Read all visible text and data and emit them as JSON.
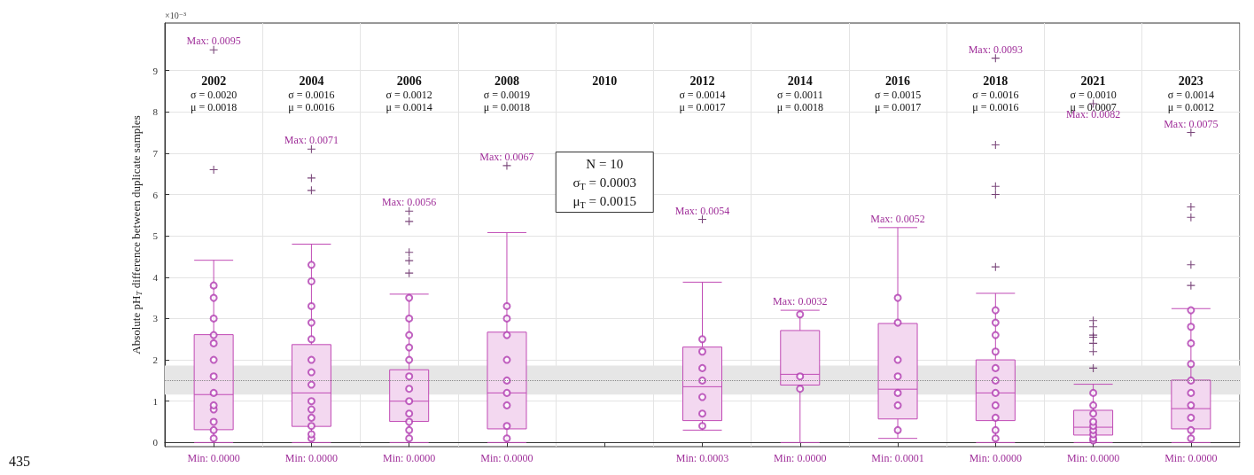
{
  "chart_data": {
    "type": "box",
    "ylabel": "Absolute pH$_{T}$ difference between duplicate samples",
    "categories": [
      "2002",
      "2004",
      "2006",
      "2008",
      "2010",
      "2012",
      "2014",
      "2016",
      "2018",
      "2021",
      "2023"
    ],
    "ylim": [
      -0.1,
      10.15
    ],
    "yticks": [
      0,
      1,
      2,
      3,
      4,
      5,
      6,
      7,
      8,
      9
    ],
    "grid": true,
    "series": [
      {
        "type": "box",
        "color": "#c04ab5",
        "boxes": [
          {
            "low": 0,
            "q1": 0.31,
            "median": 1.16,
            "q3": 2.61,
            "high": 4.41,
            "outliers": [
              6.6,
              9.5
            ]
          },
          {
            "low": 0,
            "q1": 0.39,
            "median": 1.2,
            "q3": 2.37,
            "high": 4.8,
            "outliers": [
              6.1,
              6.4,
              7.1
            ]
          },
          {
            "low": 0,
            "q1": 0.51,
            "median": 1.0,
            "q3": 1.76,
            "high": 3.59,
            "outliers": [
              4.1,
              4.4,
              4.6,
              5.35,
              5.6
            ]
          },
          {
            "low": 0,
            "q1": 0.33,
            "median": 1.2,
            "q3": 2.67,
            "high": 5.08,
            "outliers": [
              6.7
            ]
          },
          null,
          {
            "low": 0.3,
            "q1": 0.53,
            "median": 1.35,
            "q3": 2.31,
            "high": 3.88,
            "outliers": [
              5.4
            ]
          },
          {
            "low": 0,
            "q1": 1.39,
            "median": 1.65,
            "q3": 2.71,
            "high": 3.2
          },
          {
            "low": 0.1,
            "q1": 0.57,
            "median": 1.29,
            "q3": 2.88,
            "high": 5.2
          },
          {
            "low": 0,
            "q1": 0.53,
            "median": 1.2,
            "q3": 2.0,
            "high": 3.61,
            "outliers": [
              4.25,
              6.0,
              6.2,
              7.2,
              9.3
            ]
          },
          {
            "low": 0,
            "q1": 0.18,
            "median": 0.37,
            "q3": 0.78,
            "high": 1.41,
            "outliers": [
              1.8,
              2.2,
              2.4,
              2.55,
              2.6,
              2.8,
              2.95,
              8.2
            ]
          },
          {
            "low": 0,
            "q1": 0.33,
            "median": 0.82,
            "q3": 1.51,
            "high": 3.24,
            "outliers": [
              3.8,
              4.3,
              5.45,
              5.7,
              7.5
            ]
          }
        ]
      },
      {
        "type": "scatter",
        "color": "#b03bb0",
        "marker": "circle",
        "values": [
          0.1,
          0.1,
          0.1,
          0.1,
          null,
          0.4,
          1.3,
          0.3,
          0.1,
          0.05,
          0.1
        ]
      },
      {
        "type": "scatter",
        "color": "#b03bb0",
        "marker": "circle",
        "values": [
          0.3,
          0.2,
          0.3,
          0.4,
          null,
          0.7,
          1.6,
          0.9,
          0.3,
          0.1,
          0.3
        ]
      },
      {
        "type": "scatter",
        "color": "#b03bb0",
        "marker": "circle",
        "values": [
          0.5,
          0.4,
          0.5,
          0.9,
          null,
          1.1,
          3.1,
          1.2,
          0.6,
          0.2,
          0.6
        ]
      },
      {
        "type": "scatter",
        "color": "#b03bb0",
        "marker": "circle",
        "values": [
          0.8,
          0.6,
          0.7,
          1.2,
          null,
          1.5,
          null,
          1.6,
          0.9,
          0.3,
          0.9
        ]
      },
      {
        "type": "scatter",
        "color": "#b03bb0",
        "marker": "circle",
        "values": [
          0.9,
          0.8,
          1.0,
          1.5,
          null,
          1.8,
          null,
          2.0,
          1.2,
          0.4,
          1.2
        ]
      },
      {
        "type": "scatter",
        "color": "#b03bb0",
        "marker": "circle",
        "values": [
          1.2,
          1.0,
          1.3,
          2.0,
          null,
          2.2,
          null,
          2.9,
          1.5,
          0.5,
          1.5
        ]
      },
      {
        "type": "scatter",
        "color": "#b03bb0",
        "marker": "circle",
        "values": [
          1.6,
          1.4,
          1.6,
          2.6,
          null,
          2.5,
          null,
          3.5,
          1.8,
          0.7,
          1.9
        ]
      },
      {
        "type": "scatter",
        "color": "#b03bb0",
        "marker": "circle",
        "values": [
          2.0,
          1.7,
          2.0,
          3.0,
          null,
          null,
          null,
          null,
          2.2,
          0.9,
          2.4
        ]
      },
      {
        "type": "scatter",
        "color": "#b03bb0",
        "marker": "circle",
        "values": [
          2.4,
          2.0,
          2.3,
          3.3,
          null,
          null,
          null,
          null,
          2.6,
          1.2,
          2.8
        ]
      },
      {
        "type": "scatter",
        "color": "#b03bb0",
        "marker": "circle",
        "values": [
          2.6,
          2.5,
          2.6,
          null,
          null,
          null,
          null,
          null,
          2.9,
          null,
          3.2
        ]
      },
      {
        "type": "scatter",
        "color": "#b03bb0",
        "marker": "circle",
        "values": [
          3.0,
          2.9,
          3.0,
          null,
          null,
          null,
          null,
          null,
          3.2,
          null,
          null
        ]
      },
      {
        "type": "scatter",
        "color": "#b03bb0",
        "marker": "circle",
        "values": [
          3.5,
          3.3,
          3.5,
          null,
          null,
          null,
          null,
          null,
          null,
          null,
          null
        ]
      },
      {
        "type": "scatter",
        "color": "#b03bb0",
        "marker": "circle",
        "values": [
          3.8,
          3.9,
          null,
          null,
          null,
          null,
          null,
          null,
          null,
          null,
          null
        ]
      },
      {
        "type": "scatter",
        "color": "#b03bb0",
        "marker": "circle",
        "values": [
          null,
          4.3,
          null,
          null,
          null,
          null,
          null,
          null,
          null,
          null,
          null
        ]
      }
    ],
    "ref_lines": [
      {
        "axis": "y",
        "value": 1.5,
        "color": "#888888",
        "line_style": "dotted"
      }
    ],
    "bands": [
      {
        "axis": "y",
        "from": 1.16,
        "to": 1.86,
        "color": "#e6e6e6"
      }
    ],
    "annotations": [
      "×10⁻³",
      "N = 10\nσ$_{T}$ = 0.0003\nμ$_{T}$ = 0.0015",
      "435",
      "σ = 0.0020\nμ = 0.0018",
      "σ = 0.0016\nμ = 0.0016",
      "σ = 0.0012\nμ = 0.0014",
      "σ = 0.0019\nμ = 0.0018",
      "σ = 0.0014\nμ = 0.0017",
      "σ = 0.0011\nμ = 0.0018",
      "σ = 0.0015\nμ = 0.0017",
      "σ = 0.0016\nμ = 0.0016",
      "σ = 0.0010\nμ = 0.0007",
      "σ = 0.0014\nμ = 0.0012",
      "Max: 0.0095",
      "Max: 0.0071",
      "Max: 0.0056",
      "Max: 0.0067",
      "Max: 0.0054",
      "Max: 0.0032",
      "Max: 0.0052",
      "Max: 0.0093",
      "Max: 0.0082",
      "Max: 0.0075",
      "Min: 0.0000",
      "Min: 0.0000",
      "Min: 0.0000",
      "Min: 0.0000",
      "Min: 0.0003",
      "Min: 0.0000",
      "Min: 0.0001",
      "Min: 0.0000",
      "Min: 0.0000",
      "Min: 0.0000"
    ]
  }
}
